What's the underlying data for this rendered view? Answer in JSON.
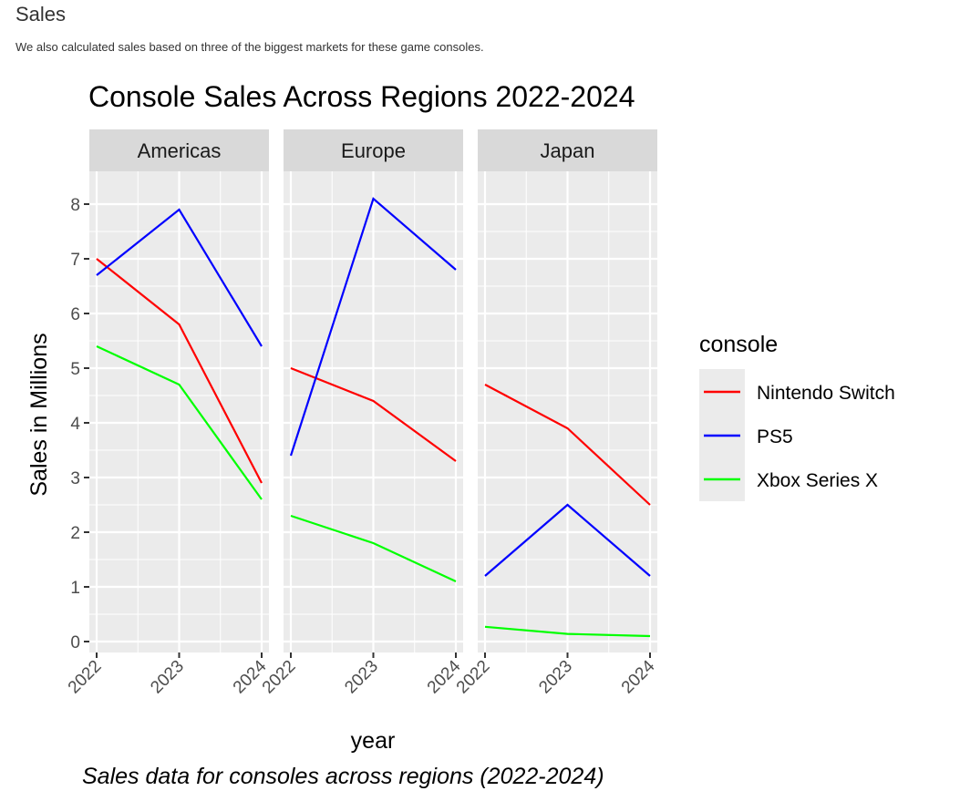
{
  "page": {
    "heading": "Sales",
    "intro": "We also calculated sales based on three of the biggest markets for these game consoles.",
    "caption": "Sales data for consoles across regions (2022-2024)"
  },
  "chart_data": {
    "type": "line",
    "title": "Console Sales Across Regions 2022-2024",
    "xlabel": "year",
    "ylabel": "Sales in Millions",
    "x": [
      "2022",
      "2023",
      "2024"
    ],
    "ylim": [
      -0.2,
      8.6
    ],
    "yticks": [
      0,
      1,
      2,
      3,
      4,
      5,
      6,
      7,
      8
    ],
    "grid": true,
    "legend": {
      "title": "console",
      "placement": "right",
      "entries": [
        "Nintendo Switch",
        "PS5",
        "Xbox Series X"
      ]
    },
    "colors": {
      "Nintendo Switch": "#ff0000",
      "PS5": "#0000ff",
      "Xbox Series X": "#00ff00",
      "panel_bg": "#ebebeb",
      "strip_bg": "#d9d9d9",
      "grid": "#ffffff"
    },
    "facets": [
      {
        "region": "Americas",
        "series": [
          {
            "name": "Nintendo Switch",
            "values": [
              7.0,
              5.8,
              2.9
            ]
          },
          {
            "name": "PS5",
            "values": [
              6.7,
              7.9,
              5.4
            ]
          },
          {
            "name": "Xbox Series X",
            "values": [
              5.4,
              4.7,
              2.6
            ]
          }
        ]
      },
      {
        "region": "Europe",
        "series": [
          {
            "name": "Nintendo Switch",
            "values": [
              5.0,
              4.4,
              3.3
            ]
          },
          {
            "name": "PS5",
            "values": [
              3.4,
              8.1,
              6.8
            ]
          },
          {
            "name": "Xbox Series X",
            "values": [
              2.3,
              1.8,
              1.1
            ]
          }
        ]
      },
      {
        "region": "Japan",
        "series": [
          {
            "name": "Nintendo Switch",
            "values": [
              4.7,
              3.9,
              2.5
            ]
          },
          {
            "name": "PS5",
            "values": [
              1.2,
              2.5,
              1.2
            ]
          },
          {
            "name": "Xbox Series X",
            "values": [
              0.27,
              0.14,
              0.1
            ]
          }
        ]
      }
    ]
  }
}
